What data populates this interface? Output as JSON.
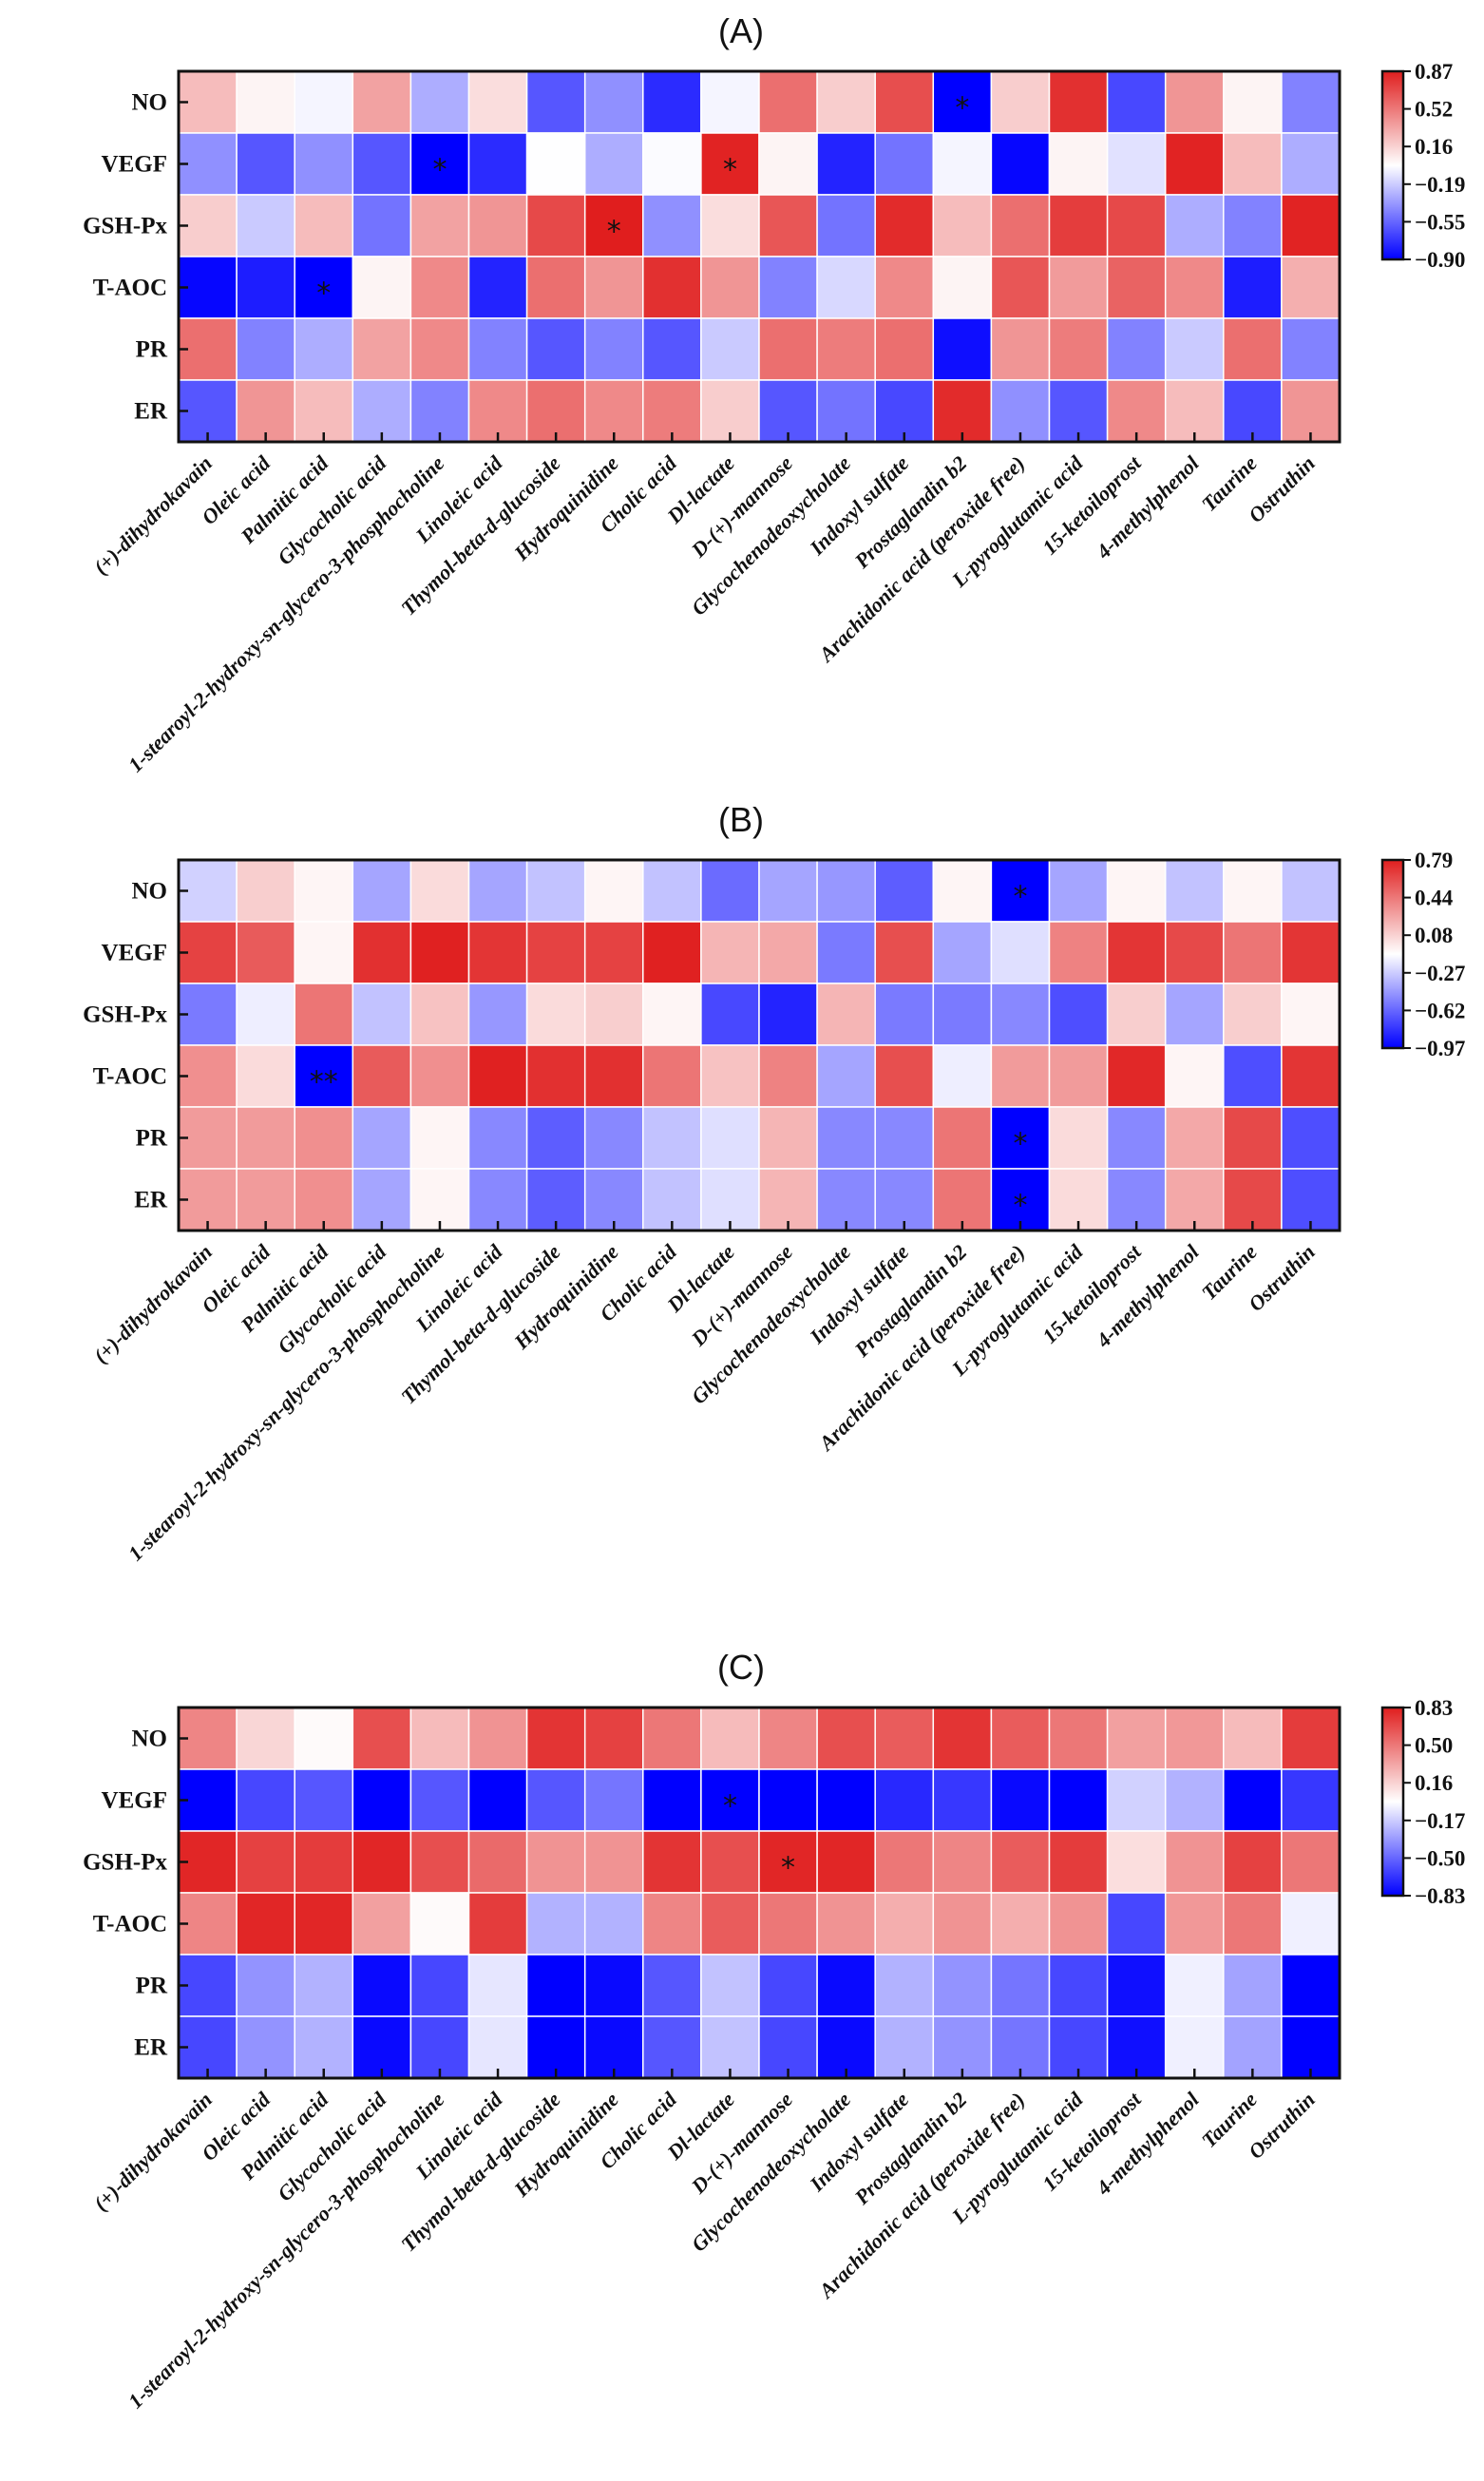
{
  "colors": {
    "low": "#0000ff",
    "mid": "#ffffff",
    "high": "#e01e1e"
  },
  "chart_data": [
    {
      "type": "heatmap",
      "title": "(A)",
      "rows": [
        "NO",
        "VEGF",
        "GSH-Px",
        "T-AOC",
        "PR",
        "ER"
      ],
      "columns": [
        "(+)-dihydrokavain",
        "Oleic acid",
        "Palmitic acid",
        "Glycocholic acid",
        "1-stearoyl-2-hydroxy-sn-glycero-3-phosphocholine",
        "Linoleic acid",
        "Thymol-beta-d-glucoside",
        "Hydroquinidine",
        "Cholic acid",
        "Dl-lactate",
        "D-(+)-mannose",
        "Glycochenodeoxycholate",
        "Indoxyl sulfate",
        "Prostaglandin b2",
        "Arachidonic acid (peroxide free)",
        "L-pyroglutamic acid",
        "15-ketoiloprost",
        "4-methylphenol",
        "Taurine",
        "Ostruthin"
      ],
      "values": [
        [
          0.25,
          0.03,
          -0.05,
          0.35,
          -0.3,
          0.12,
          -0.6,
          -0.4,
          -0.75,
          -0.05,
          0.55,
          0.18,
          0.68,
          -0.9,
          0.18,
          0.8,
          -0.65,
          0.4,
          0.03,
          -0.45
        ],
        [
          -0.4,
          -0.6,
          -0.4,
          -0.6,
          -0.9,
          -0.75,
          -0.02,
          -0.3,
          -0.03,
          0.85,
          0.03,
          -0.78,
          -0.5,
          -0.05,
          -0.88,
          0.03,
          -0.12,
          0.85,
          0.25,
          -0.3
        ],
        [
          0.18,
          -0.2,
          0.25,
          -0.5,
          0.35,
          0.4,
          0.7,
          0.87,
          -0.4,
          0.12,
          0.65,
          -0.5,
          0.82,
          0.25,
          0.55,
          0.75,
          0.7,
          -0.3,
          -0.45,
          0.85
        ],
        [
          -0.88,
          -0.8,
          -0.9,
          0.03,
          0.45,
          -0.78,
          0.55,
          0.4,
          0.8,
          0.4,
          -0.45,
          -0.15,
          0.45,
          0.03,
          0.65,
          0.38,
          0.6,
          0.45,
          -0.8,
          0.3
        ],
        [
          0.55,
          -0.45,
          -0.3,
          0.35,
          0.45,
          -0.45,
          -0.6,
          -0.45,
          -0.6,
          -0.2,
          0.55,
          0.5,
          0.55,
          -0.85,
          0.4,
          0.5,
          -0.45,
          -0.2,
          0.55,
          -0.45
        ],
        [
          -0.6,
          0.4,
          0.25,
          -0.3,
          -0.45,
          0.45,
          0.55,
          0.45,
          0.5,
          0.18,
          -0.6,
          -0.5,
          -0.65,
          0.82,
          -0.4,
          -0.6,
          0.45,
          0.25,
          -0.65,
          0.4
        ]
      ],
      "annotations": [
        {
          "row": 0,
          "col": 13,
          "text": "*"
        },
        {
          "row": 1,
          "col": 4,
          "text": "*"
        },
        {
          "row": 1,
          "col": 9,
          "text": "*"
        },
        {
          "row": 2,
          "col": 7,
          "text": "*"
        },
        {
          "row": 3,
          "col": 2,
          "text": "*"
        }
      ],
      "colorbar": {
        "range": [
          -0.9,
          0.87
        ],
        "ticks": [
          "0.87",
          "0.52",
          "0.16",
          "−0.19",
          "−0.55",
          "−0.90"
        ]
      },
      "legend_placement": "right"
    },
    {
      "type": "heatmap",
      "title": "(B)",
      "rows": [
        "NO",
        "VEGF",
        "GSH-Px",
        "T-AOC",
        "PR",
        "ER"
      ],
      "columns": [
        "(+)-dihydrokavain",
        "Oleic acid",
        "Palmitic acid",
        "Glycocholic acid",
        "1-stearoyl-2-hydroxy-sn-glycero-3-phosphocholine",
        "Linoleic acid",
        "Thymol-beta-d-glucoside",
        "Hydroquinidine",
        "Cholic acid",
        "Dl-lactate",
        "D-(+)-mannose",
        "Glycochenodeoxycholate",
        "Indoxyl sulfate",
        "Prostaglandin b2",
        "Arachidonic acid (peroxide free)",
        "L-pyroglutamic acid",
        "15-ketoiloprost",
        "4-methylphenol",
        "Taurine",
        "Ostruthin"
      ],
      "values": [
        [
          -0.25,
          0.1,
          -0.05,
          -0.4,
          0.05,
          -0.4,
          -0.3,
          -0.05,
          -0.3,
          -0.6,
          -0.4,
          -0.45,
          -0.65,
          -0.05,
          -0.97,
          -0.4,
          -0.05,
          -0.3,
          -0.05,
          -0.3
        ],
        [
          0.65,
          0.55,
          -0.05,
          0.72,
          0.78,
          0.7,
          0.65,
          0.65,
          0.78,
          0.2,
          0.25,
          -0.55,
          0.6,
          -0.4,
          -0.2,
          0.4,
          0.7,
          0.62,
          0.45,
          0.7
        ],
        [
          -0.55,
          -0.15,
          0.45,
          -0.3,
          0.15,
          -0.45,
          0.05,
          0.1,
          -0.05,
          -0.72,
          -0.85,
          0.2,
          -0.55,
          -0.55,
          -0.5,
          -0.7,
          0.1,
          -0.4,
          0.1,
          -0.05
        ],
        [
          0.35,
          0.05,
          -0.97,
          0.55,
          0.35,
          0.78,
          0.72,
          0.72,
          0.45,
          0.15,
          0.4,
          -0.4,
          0.6,
          -0.15,
          0.3,
          0.3,
          0.75,
          -0.05,
          -0.7,
          0.7
        ],
        [
          0.3,
          0.3,
          0.35,
          -0.4,
          -0.05,
          -0.5,
          -0.65,
          -0.5,
          -0.3,
          -0.2,
          0.2,
          -0.5,
          -0.5,
          0.45,
          -0.97,
          0.05,
          -0.5,
          0.25,
          0.62,
          -0.7
        ],
        [
          0.3,
          0.3,
          0.35,
          -0.4,
          -0.05,
          -0.5,
          -0.65,
          -0.5,
          -0.3,
          -0.2,
          0.2,
          -0.5,
          -0.5,
          0.45,
          -0.97,
          0.05,
          -0.5,
          0.25,
          0.62,
          -0.7
        ]
      ],
      "annotations": [
        {
          "row": 0,
          "col": 14,
          "text": "*"
        },
        {
          "row": 3,
          "col": 2,
          "text": "**"
        },
        {
          "row": 4,
          "col": 14,
          "text": "*"
        },
        {
          "row": 5,
          "col": 14,
          "text": "*"
        }
      ],
      "colorbar": {
        "range": [
          -0.97,
          0.79
        ],
        "ticks": [
          "0.79",
          "0.44",
          "0.08",
          "−0.27",
          "−0.62",
          "−0.97"
        ]
      },
      "legend_placement": "right"
    },
    {
      "type": "heatmap",
      "title": "(C)",
      "rows": [
        "NO",
        "VEGF",
        "GSH-Px",
        "T-AOC",
        "PR",
        "ER"
      ],
      "columns": [
        "(+)-dihydrokavain",
        "Oleic acid",
        "Palmitic acid",
        "Glycocholic acid",
        "1-stearoyl-2-hydroxy-sn-glycero-3-phosphocholine",
        "Linoleic acid",
        "Thymol-beta-d-glucoside",
        "Hydroquinidine",
        "Cholic acid",
        "Dl-lactate",
        "D-(+)-mannose",
        "Glycochenodeoxycholate",
        "Indoxyl sulfate",
        "Prostaglandin b2",
        "Arachidonic acid (peroxide free)",
        "L-pyroglutamic acid",
        "15-ketoiloprost",
        "4-methylphenol",
        "Taurine",
        "Ostruthin"
      ],
      "values": [
        [
          0.45,
          0.15,
          0.02,
          0.65,
          0.25,
          0.4,
          0.75,
          0.7,
          0.5,
          0.25,
          0.45,
          0.65,
          0.6,
          0.75,
          0.6,
          0.5,
          0.35,
          0.38,
          0.25,
          0.72
        ],
        [
          -0.83,
          -0.6,
          -0.55,
          -0.83,
          -0.55,
          -0.83,
          -0.55,
          -0.45,
          -0.83,
          -0.83,
          -0.83,
          -0.83,
          -0.7,
          -0.65,
          -0.8,
          -0.83,
          -0.15,
          -0.25,
          -0.83,
          -0.65
        ],
        [
          0.8,
          0.7,
          0.72,
          0.8,
          0.65,
          0.55,
          0.4,
          0.4,
          0.75,
          0.65,
          0.8,
          0.8,
          0.5,
          0.45,
          0.6,
          0.72,
          0.12,
          0.4,
          0.7,
          0.5
        ],
        [
          0.45,
          0.8,
          0.8,
          0.35,
          0.02,
          0.72,
          -0.25,
          -0.25,
          0.45,
          0.6,
          0.5,
          0.4,
          0.3,
          0.4,
          0.3,
          0.4,
          -0.6,
          0.38,
          0.5,
          -0.05
        ],
        [
          -0.6,
          -0.35,
          -0.25,
          -0.8,
          -0.6,
          -0.08,
          -0.83,
          -0.8,
          -0.55,
          -0.2,
          -0.6,
          -0.8,
          -0.25,
          -0.35,
          -0.45,
          -0.6,
          -0.78,
          -0.05,
          -0.3,
          -0.83
        ],
        [
          -0.6,
          -0.35,
          -0.25,
          -0.8,
          -0.6,
          -0.08,
          -0.83,
          -0.8,
          -0.55,
          -0.2,
          -0.6,
          -0.8,
          -0.25,
          -0.35,
          -0.45,
          -0.6,
          -0.78,
          -0.05,
          -0.3,
          -0.83
        ]
      ],
      "annotations": [
        {
          "row": 1,
          "col": 9,
          "text": "*"
        },
        {
          "row": 2,
          "col": 10,
          "text": "*"
        }
      ],
      "colorbar": {
        "range": [
          -0.83,
          0.83
        ],
        "ticks": [
          "0.83",
          "0.50",
          "0.16",
          "−0.17",
          "−0.50",
          "−0.83"
        ]
      },
      "legend_placement": "right"
    }
  ]
}
